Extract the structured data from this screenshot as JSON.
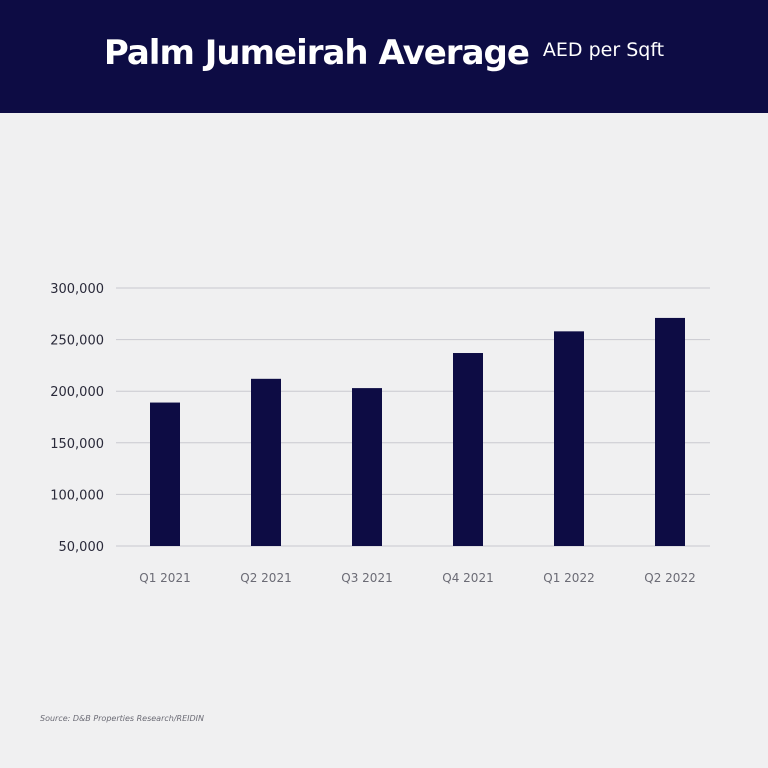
{
  "header": {
    "title": "Palm Jumeirah Average",
    "subtitle": "AED per Sqft"
  },
  "source": "Source: D&B Properties Research/REIDIN",
  "colors": {
    "header_bg": "#0d0c44",
    "bar": "#0d0c44",
    "grid": "#c9c9cf",
    "background": "#f0f0f1"
  },
  "chart_data": {
    "type": "bar",
    "categories": [
      "Q1 2021",
      "Q2 2021",
      "Q3 2021",
      "Q4 2021",
      "Q1 2022",
      "Q2 2022"
    ],
    "values": [
      189000,
      212000,
      203000,
      237000,
      258000,
      271000
    ],
    "ylim": [
      50000,
      300000
    ],
    "yticks": [
      50000,
      100000,
      150000,
      200000,
      250000,
      300000
    ],
    "ytick_labels": [
      "50,000",
      "100,000",
      "150,000",
      "200,000",
      "250,000",
      "300,000"
    ],
    "grid": true,
    "legend": "none"
  }
}
